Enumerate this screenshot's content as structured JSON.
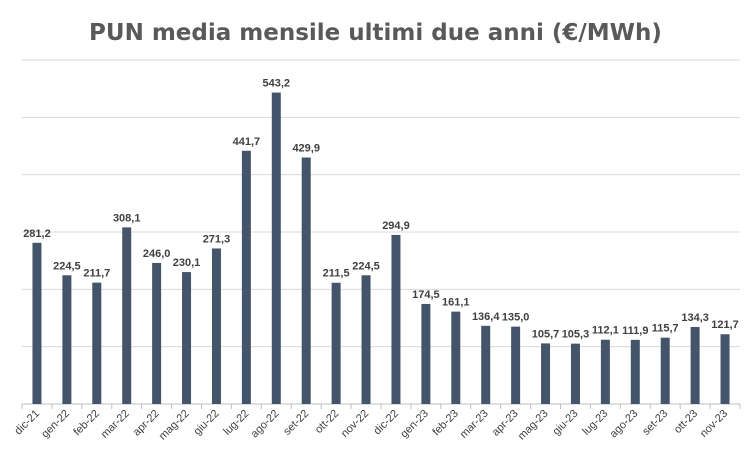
{
  "chart_data": {
    "type": "bar",
    "title": "PUN media mensile ultimi due anni (€/MWh)",
    "xlabel": "",
    "ylabel": "",
    "ylim": [
      0,
      600
    ],
    "grid": true,
    "bar_color": "#44546a",
    "categories": [
      "dic-21",
      "gen-22",
      "feb-22",
      "mar-22",
      "apr-22",
      "mag-22",
      "giu-22",
      "lug-22",
      "ago-22",
      "set-22",
      "ott-22",
      "nov-22",
      "dic-22",
      "gen-23",
      "feb-23",
      "mar-23",
      "apr-23",
      "mag-23",
      "giu-23",
      "lug-23",
      "ago-23",
      "set-23",
      "ott-23",
      "nov-23"
    ],
    "values": [
      281.2,
      224.5,
      211.7,
      308.1,
      246.0,
      230.1,
      271.3,
      441.7,
      543.2,
      429.9,
      211.5,
      224.5,
      294.9,
      174.5,
      161.1,
      136.4,
      135.0,
      105.7,
      105.3,
      112.1,
      111.9,
      115.7,
      134.3,
      121.7
    ],
    "value_labels": [
      "281,2",
      "224,5",
      "211,7",
      "308,1",
      "246,0",
      "230,1",
      "271,3",
      "441,7",
      "543,2",
      "429,9",
      "211,5",
      "224,5",
      "294,9",
      "174,5",
      "161,1",
      "136,4",
      "135,0",
      "105,7",
      "105,3",
      "112,1",
      "111,9",
      "115,7",
      "134,3",
      "121,7"
    ]
  }
}
